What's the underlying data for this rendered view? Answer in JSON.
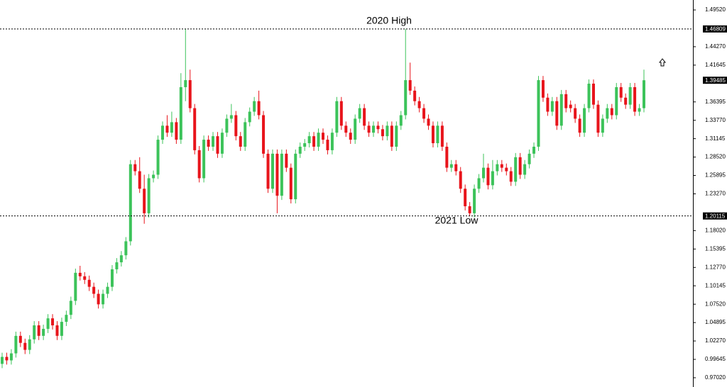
{
  "chart_data": {
    "type": "candlestick",
    "ylim": [
      0.957,
      1.5094
    ],
    "yticks": [
      {
        "value": 1.4952,
        "label": "1.49520"
      },
      {
        "value": 1.4427,
        "label": "1.44270"
      },
      1.41645,
      1.36395,
      {
        "value": 1.3377,
        "label": "1.33770"
      },
      1.31145,
      {
        "value": 1.2852,
        "label": "1.28520"
      },
      1.25895,
      {
        "value": 1.2327,
        "label": "1.23270"
      },
      {
        "value": 1.1802,
        "label": "1.18020"
      },
      1.15395,
      {
        "value": 1.1277,
        "label": "1.12770"
      },
      1.10145,
      {
        "value": 1.0752,
        "label": "1.07520"
      },
      1.04895,
      {
        "value": 1.0227,
        "label": "1.02270"
      },
      0.99645,
      {
        "value": 0.9702,
        "label": "0.97020"
      }
    ],
    "up_color": "#3cc35a",
    "down_color": "#e8141b",
    "levels": [
      {
        "label": "2020 High",
        "value": 1.46809
      },
      {
        "label": "2021 Low",
        "value": 1.20115
      }
    ],
    "open": [
      0.99,
      1.0,
      0.995,
      1.005,
      1.03,
      1.02,
      1.01,
      1.025,
      1.045,
      1.03,
      1.04,
      1.055,
      1.045,
      1.03,
      1.05,
      1.06,
      1.08,
      1.12,
      1.115,
      1.11,
      1.1,
      1.09,
      1.075,
      1.09,
      1.1,
      1.125,
      1.135,
      1.145,
      1.165,
      1.275,
      1.265,
      1.24,
      1.205,
      1.255,
      1.26,
      1.31,
      1.33,
      1.32,
      1.335,
      1.31,
      1.385,
      1.395,
      1.355,
      1.295,
      1.255,
      1.31,
      1.3,
      1.315,
      1.29,
      1.32,
      1.34,
      1.345,
      1.315,
      1.3,
      1.335,
      1.35,
      1.365,
      1.345,
      1.29,
      1.24,
      1.29,
      1.23,
      1.29,
      1.27,
      1.225,
      1.29,
      1.3,
      1.305,
      1.315,
      1.3,
      1.32,
      1.31,
      1.295,
      1.32,
      1.365,
      1.33,
      1.32,
      1.31,
      1.34,
      1.355,
      1.33,
      1.32,
      1.33,
      1.325,
      1.315,
      1.33,
      1.3,
      1.33,
      1.345,
      1.395,
      1.38,
      1.365,
      1.355,
      1.34,
      1.33,
      1.305,
      1.33,
      1.3,
      1.27,
      1.275,
      1.265,
      1.24,
      1.215,
      1.205,
      1.24,
      1.255,
      1.27,
      1.245,
      1.265,
      1.275,
      1.27,
      1.265,
      1.25,
      1.285,
      1.26,
      1.275,
      1.29,
      1.3,
      1.395,
      1.37,
      1.35,
      1.365,
      1.33,
      1.375,
      1.36,
      1.355,
      1.34,
      1.32,
      1.355,
      1.39,
      1.36,
      1.32,
      1.34,
      1.355,
      1.345,
      1.385,
      1.37,
      1.36,
      1.385,
      1.35,
      1.355
    ],
    "high": [
      1.006,
      1.006,
      1.011,
      1.036,
      1.036,
      1.026,
      1.031,
      1.051,
      1.051,
      1.046,
      1.061,
      1.061,
      1.051,
      1.056,
      1.066,
      1.086,
      1.126,
      1.13,
      1.121,
      1.116,
      1.106,
      1.096,
      1.096,
      1.106,
      1.131,
      1.141,
      1.151,
      1.171,
      1.281,
      1.281,
      1.285,
      1.26,
      1.261,
      1.266,
      1.316,
      1.336,
      1.345,
      1.35,
      1.341,
      1.405,
      1.468,
      1.41,
      1.361,
      1.301,
      1.316,
      1.316,
      1.321,
      1.321,
      1.326,
      1.346,
      1.361,
      1.351,
      1.321,
      1.341,
      1.356,
      1.371,
      1.38,
      1.351,
      1.296,
      1.296,
      1.296,
      1.296,
      1.296,
      1.276,
      1.296,
      1.306,
      1.311,
      1.321,
      1.321,
      1.326,
      1.326,
      1.316,
      1.326,
      1.371,
      1.371,
      1.336,
      1.326,
      1.346,
      1.361,
      1.361,
      1.336,
      1.336,
      1.336,
      1.331,
      1.336,
      1.336,
      1.336,
      1.351,
      1.468,
      1.42,
      1.386,
      1.371,
      1.361,
      1.346,
      1.336,
      1.336,
      1.336,
      1.306,
      1.281,
      1.281,
      1.271,
      1.246,
      1.221,
      1.246,
      1.261,
      1.29,
      1.276,
      1.281,
      1.281,
      1.281,
      1.276,
      1.271,
      1.291,
      1.291,
      1.281,
      1.296,
      1.306,
      1.401,
      1.401,
      1.376,
      1.371,
      1.371,
      1.381,
      1.381,
      1.366,
      1.361,
      1.346,
      1.361,
      1.396,
      1.396,
      1.366,
      1.346,
      1.361,
      1.361,
      1.391,
      1.391,
      1.376,
      1.391,
      1.391,
      1.361,
      1.41
    ],
    "low": [
      0.984,
      0.989,
      0.989,
      0.999,
      1.014,
      1.004,
      1.004,
      1.019,
      1.024,
      1.024,
      1.034,
      1.039,
      1.024,
      1.024,
      1.044,
      1.054,
      1.074,
      1.109,
      1.104,
      1.094,
      1.084,
      1.069,
      1.069,
      1.084,
      1.094,
      1.119,
      1.129,
      1.139,
      1.159,
      1.259,
      1.234,
      1.19,
      1.199,
      1.249,
      1.254,
      1.304,
      1.314,
      1.314,
      1.304,
      1.304,
      1.365,
      1.349,
      1.289,
      1.249,
      1.249,
      1.294,
      1.294,
      1.284,
      1.284,
      1.314,
      1.334,
      1.309,
      1.294,
      1.294,
      1.329,
      1.344,
      1.339,
      1.284,
      1.234,
      1.234,
      1.205,
      1.224,
      1.264,
      1.219,
      1.219,
      1.284,
      1.294,
      1.299,
      1.294,
      1.294,
      1.304,
      1.289,
      1.289,
      1.314,
      1.324,
      1.314,
      1.304,
      1.304,
      1.334,
      1.324,
      1.314,
      1.314,
      1.319,
      1.309,
      1.309,
      1.294,
      1.294,
      1.324,
      1.339,
      1.374,
      1.359,
      1.349,
      1.334,
      1.324,
      1.299,
      1.299,
      1.294,
      1.264,
      1.264,
      1.259,
      1.234,
      1.209,
      1.201,
      1.199,
      1.234,
      1.249,
      1.239,
      1.239,
      1.259,
      1.264,
      1.259,
      1.244,
      1.244,
      1.254,
      1.254,
      1.269,
      1.284,
      1.294,
      1.364,
      1.344,
      1.344,
      1.324,
      1.324,
      1.349,
      1.349,
      1.334,
      1.314,
      1.314,
      1.349,
      1.354,
      1.314,
      1.314,
      1.334,
      1.339,
      1.339,
      1.364,
      1.354,
      1.354,
      1.344,
      1.344,
      1.349
    ],
    "close": [
      1.0,
      0.995,
      1.005,
      1.03,
      1.02,
      1.01,
      1.025,
      1.045,
      1.03,
      1.04,
      1.055,
      1.045,
      1.03,
      1.05,
      1.06,
      1.08,
      1.12,
      1.115,
      1.11,
      1.1,
      1.09,
      1.075,
      1.09,
      1.1,
      1.125,
      1.135,
      1.145,
      1.165,
      1.275,
      1.265,
      1.24,
      1.205,
      1.255,
      1.26,
      1.31,
      1.33,
      1.32,
      1.335,
      1.31,
      1.385,
      1.395,
      1.355,
      1.295,
      1.255,
      1.31,
      1.3,
      1.315,
      1.29,
      1.32,
      1.34,
      1.345,
      1.315,
      1.3,
      1.335,
      1.35,
      1.365,
      1.345,
      1.29,
      1.24,
      1.29,
      1.23,
      1.29,
      1.27,
      1.225,
      1.29,
      1.3,
      1.305,
      1.315,
      1.3,
      1.32,
      1.31,
      1.295,
      1.32,
      1.365,
      1.33,
      1.32,
      1.31,
      1.34,
      1.355,
      1.33,
      1.32,
      1.33,
      1.325,
      1.315,
      1.33,
      1.3,
      1.33,
      1.345,
      1.395,
      1.38,
      1.365,
      1.355,
      1.34,
      1.33,
      1.305,
      1.33,
      1.3,
      1.27,
      1.275,
      1.265,
      1.24,
      1.215,
      1.205,
      1.24,
      1.255,
      1.27,
      1.245,
      1.265,
      1.275,
      1.27,
      1.265,
      1.25,
      1.285,
      1.26,
      1.275,
      1.29,
      1.3,
      1.395,
      1.37,
      1.35,
      1.365,
      1.33,
      1.375,
      1.355,
      1.355,
      1.34,
      1.32,
      1.355,
      1.39,
      1.36,
      1.32,
      1.34,
      1.355,
      1.345,
      1.385,
      1.37,
      1.36,
      1.385,
      1.35,
      1.355,
      1.39485
    ]
  }
}
